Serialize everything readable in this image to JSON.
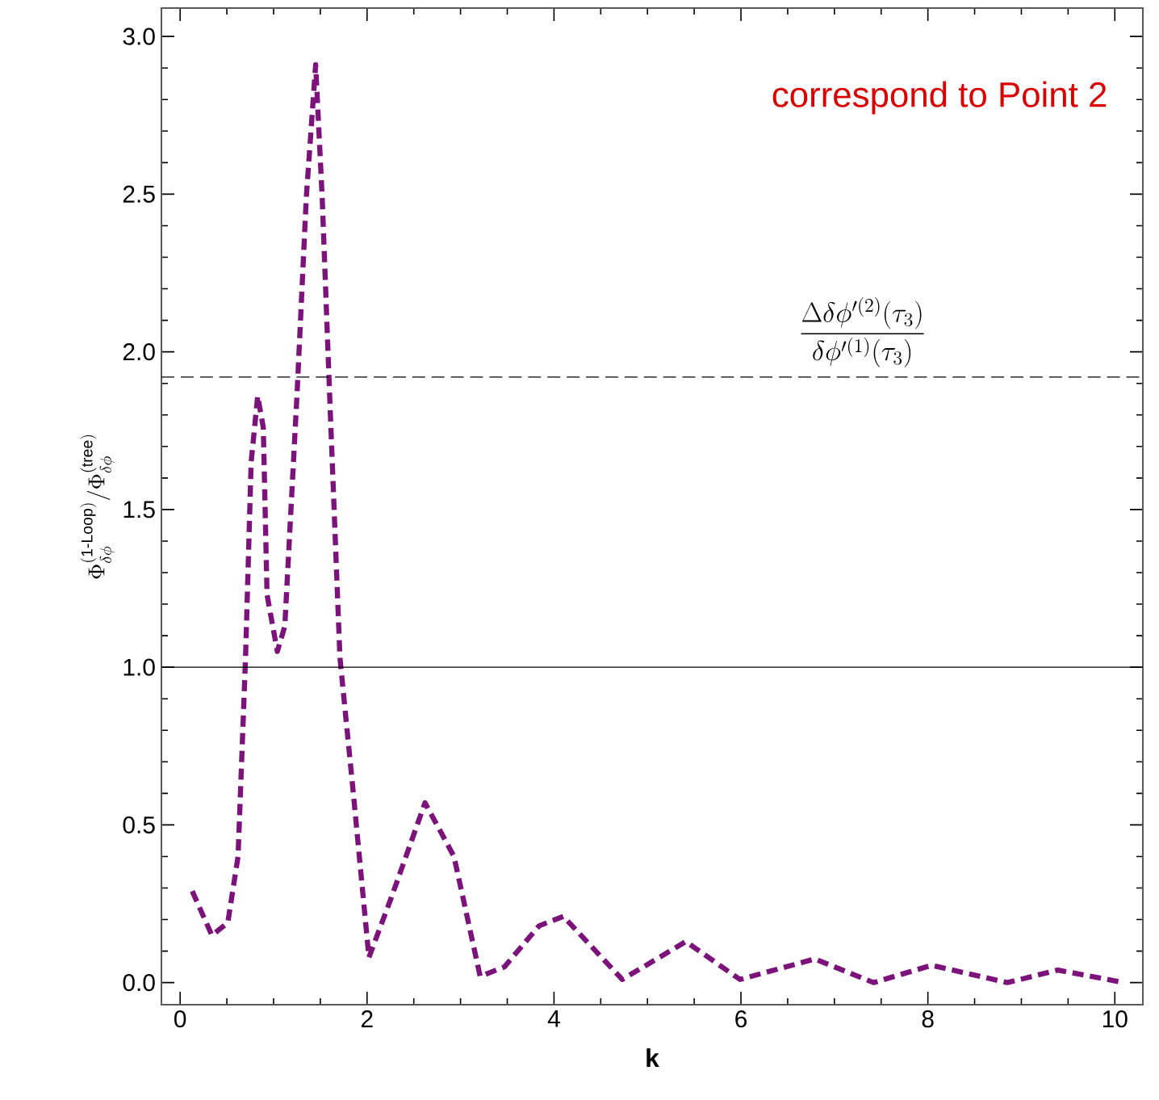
{
  "chart_data": {
    "type": "line",
    "xlabel": "k",
    "ylabel": "\\Phi^{(\\mathrm{1\\text{-}Loop})}_{\\delta\\phi}/\\Phi^{(\\mathrm{tree})}_{\\delta\\phi}",
    "annotations": [
      "correspond to Point 2"
    ],
    "xlim": [
      -0.2,
      10.3
    ],
    "ylim": [
      -0.07,
      3.09
    ],
    "xticks": [
      0,
      2,
      4,
      6,
      8,
      10
    ],
    "yticks": [
      {
        "value": 0,
        "label": "0.0"
      },
      {
        "value": 0.5,
        "label": "0.5"
      },
      {
        "value": 1,
        "label": "1.0"
      },
      {
        "value": 1.5,
        "label": "1.5"
      },
      {
        "value": 2,
        "label": "2.0"
      },
      {
        "value": 2.5,
        "label": "2.5"
      },
      {
        "value": 3,
        "label": "3.0"
      }
    ],
    "ref_lines": [
      {
        "axis": "y",
        "value": 1.92,
        "line_style": "dashed",
        "label": "\\frac{\\Delta\\delta\\phi'^{(2)}(\\tau_3)}{\\delta\\phi'^{(1)}(\\tau_3)}"
      },
      {
        "axis": "y",
        "value": 1.0,
        "line_style": "solid"
      }
    ],
    "marker": "none",
    "line_style": "dashed",
    "series": [
      {
        "color": "#7b137b",
        "x": [
          0.13,
          0.34,
          0.51,
          0.62,
          0.7,
          0.76,
          0.83,
          0.89,
          0.93,
          1.04,
          1.12,
          1.25,
          1.35,
          1.45,
          1.52,
          1.6,
          1.71,
          1.85,
          2.02,
          2.26,
          2.62,
          2.93,
          3.21,
          3.47,
          3.84,
          4.1,
          4.73,
          5.41,
          5.99,
          6.79,
          7.42,
          8.04,
          8.85,
          9.39,
          10.1
        ],
        "values": [
          0.29,
          0.15,
          0.19,
          0.4,
          1.03,
          1.65,
          1.86,
          1.76,
          1.23,
          1.05,
          1.13,
          1.86,
          2.49,
          2.91,
          2.49,
          1.86,
          1.03,
          0.61,
          0.08,
          0.27,
          0.57,
          0.4,
          0.02,
          0.05,
          0.18,
          0.21,
          0.01,
          0.13,
          0.01,
          0.075,
          0.0,
          0.055,
          0.0,
          0.04,
          0.0
        ]
      }
    ]
  }
}
